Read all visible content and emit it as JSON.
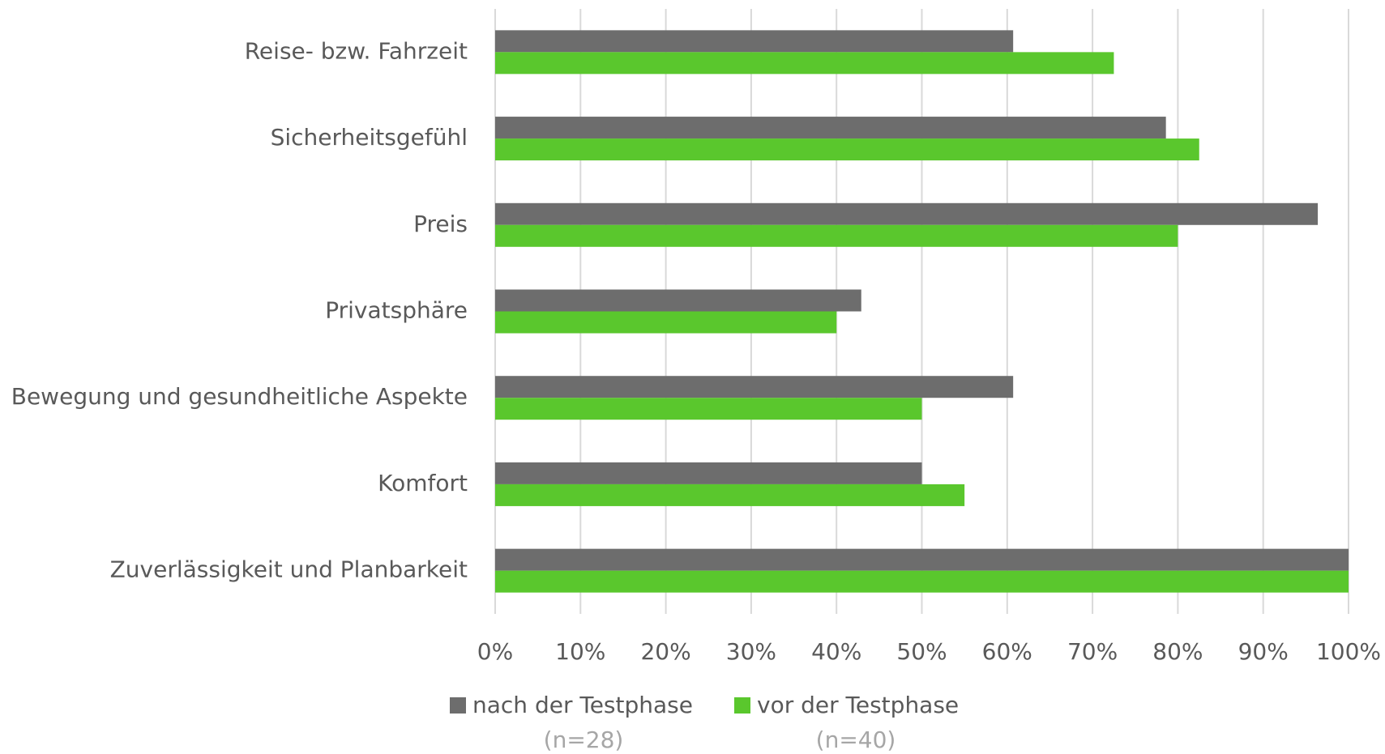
{
  "chart_data": {
    "type": "bar",
    "orientation": "horizontal",
    "categories": [
      "Reise- bzw. Fahrzeit",
      "Sicherheitsgefühl",
      "Preis",
      "Privatsphäre",
      "Bewegung und gesundheitliche Aspekte",
      "Komfort",
      "Zuverlässigkeit und Planbarkeit"
    ],
    "series": [
      {
        "name": "nach der Testphase",
        "sample": "(n=28)",
        "color": "#6d6d6d",
        "values": [
          60.7,
          78.6,
          96.4,
          42.9,
          60.7,
          50,
          100
        ]
      },
      {
        "name": "vor der Testphase",
        "sample": "(n=40)",
        "color": "#5ac72d",
        "values": [
          72.5,
          82.5,
          80,
          40,
          50,
          55,
          100
        ]
      }
    ],
    "xlim": [
      0,
      100
    ],
    "xticks": [
      {
        "value": 0,
        "label": "0%"
      },
      {
        "value": 10,
        "label": "10%"
      },
      {
        "value": 20,
        "label": "20%"
      },
      {
        "value": 30,
        "label": "30%"
      },
      {
        "value": 40,
        "label": "40%"
      },
      {
        "value": 50,
        "label": "50%"
      },
      {
        "value": 60,
        "label": "60%"
      },
      {
        "value": 70,
        "label": "70%"
      },
      {
        "value": 80,
        "label": "80%"
      },
      {
        "value": 90,
        "label": "90%"
      },
      {
        "value": 100,
        "label": "100%"
      }
    ],
    "grid": true,
    "legend": "bottom"
  }
}
